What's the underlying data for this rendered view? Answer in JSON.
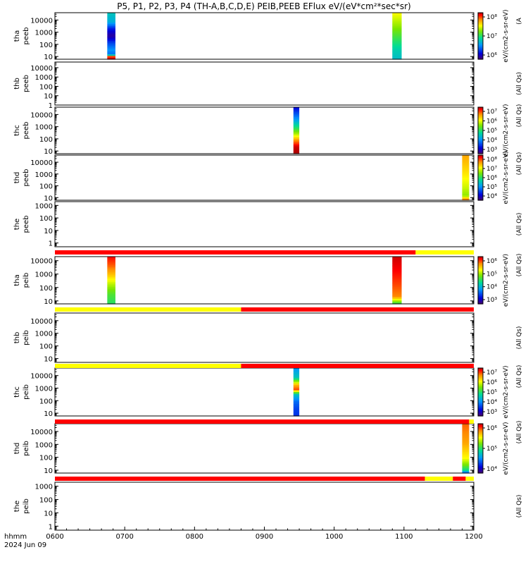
{
  "title": "P5, P1, P2, P3, P4 (TH-A,B,C,D,E) PEIB,PEEB EFlux eV/(eV*cm²*sec*sr)",
  "footer": {
    "xunit": "hhmm",
    "date": "2024 Jun 09"
  },
  "chart_data": {
    "type": "heatmap",
    "x_axis": {
      "range": [
        "0600",
        "1200"
      ],
      "ticks": [
        "0600",
        "0700",
        "0800",
        "0900",
        "1000",
        "1100",
        "1200"
      ]
    },
    "panels": [
      {
        "id": "tha-peeb",
        "label_top": "tha",
        "label_bottom": "peeb",
        "yscale": "log",
        "ylim": [
          6,
          40000
        ],
        "yticks": [
          "10000",
          "1000",
          "100",
          "10"
        ],
        "colorbar": {
          "ticks": [
            "10⁸",
            "10⁷",
            "10⁶"
          ],
          "label": "eV/(cm2-s-sr-eV)",
          "side_label": "(A"
        },
        "spectra": [
          {
            "x_start": "0645",
            "x_end": "0652",
            "profile": "tha_e_1"
          },
          {
            "x_start": "1050",
            "x_end": "1058",
            "profile": "tha_e_2"
          }
        ]
      },
      {
        "id": "thb-peeb",
        "label_top": "thb",
        "label_bottom": "peeb",
        "yscale": "log",
        "ylim": [
          1,
          40000
        ],
        "yticks": [
          "10000",
          "1000",
          "100",
          "10",
          "1"
        ],
        "side_label": "(All Qs)",
        "spectra": []
      },
      {
        "id": "thc-peeb",
        "label_top": "thc",
        "label_bottom": "peeb",
        "yscale": "log",
        "ylim": [
          6,
          40000
        ],
        "yticks": [
          "10000",
          "1000",
          "100",
          "10"
        ],
        "colorbar": {
          "ticks": [
            "10⁷",
            "10⁶",
            "10⁵",
            "10⁴",
            "10³"
          ],
          "label": "eV/(cm2-s-sr-eV)",
          "side_label": "(All Qs)"
        },
        "spectra": [
          {
            "x_start": "0925",
            "x_end": "0930",
            "profile": "thc_e"
          }
        ]
      },
      {
        "id": "thd-peeb",
        "label_top": "thd",
        "label_bottom": "peeb",
        "yscale": "log",
        "ylim": [
          6,
          40000
        ],
        "yticks": [
          "10000",
          "1000",
          "100",
          "10"
        ],
        "colorbar": {
          "ticks": [
            "10⁸",
            "10⁷",
            "10⁶",
            "10⁵",
            "10⁴"
          ],
          "label": "eV/(cm2-s-sr-eV)",
          "side_label": "(All Qs)"
        },
        "spectra": [
          {
            "x_start": "1150",
            "x_end": "1156",
            "profile": "thd_e"
          }
        ]
      },
      {
        "id": "the-peeb",
        "label_top": "the",
        "label_bottom": "peeb",
        "yscale": "log",
        "ylim": [
          0.5,
          2000
        ],
        "yticks": [
          "1000",
          "100",
          "10",
          "1"
        ],
        "side_label": "(All Qs)",
        "spectra": []
      },
      {
        "id": "tha-peib",
        "label_top": "tha",
        "label_bottom": "peib",
        "yscale": "log",
        "ylim": [
          6,
          20000
        ],
        "yticks": [
          "10000",
          "1000",
          "100",
          "10"
        ],
        "colorbar": {
          "ticks": [
            "10⁶",
            "10⁵",
            "10⁴",
            "10³"
          ],
          "label": "eV/(cm2-s-sr-eV)",
          "side_label": "(All Qs)"
        },
        "spectra": [
          {
            "x_start": "0645",
            "x_end": "0652",
            "profile": "tha_i_1"
          },
          {
            "x_start": "1050",
            "x_end": "1058",
            "profile": "tha_i_2"
          }
        ]
      },
      {
        "id": "thb-peib",
        "label_top": "thb",
        "label_bottom": "peib",
        "yscale": "log",
        "ylim": [
          5,
          40000
        ],
        "yticks": [
          "10000",
          "1000",
          "100",
          "10"
        ],
        "side_label": "(All Qs)",
        "spectra": []
      },
      {
        "id": "thc-peib",
        "label_top": "thc",
        "label_bottom": "peib",
        "yscale": "log",
        "ylim": [
          6,
          40000
        ],
        "yticks": [
          "10000",
          "1000",
          "100",
          "10"
        ],
        "colorbar": {
          "ticks": [
            "10⁷",
            "10⁶",
            "10⁵",
            "10⁴",
            "10³"
          ],
          "label": "eV/(cm2-s-sr-eV)",
          "side_label": "(All Qs)"
        },
        "spectra": [
          {
            "x_start": "0925",
            "x_end": "0930",
            "profile": "thc_i"
          }
        ]
      },
      {
        "id": "thd-peib",
        "label_top": "thd",
        "label_bottom": "peib",
        "yscale": "log",
        "ylim": [
          6,
          40000
        ],
        "yticks": [
          "10000",
          "1000",
          "100",
          "10"
        ],
        "colorbar": {
          "ticks": [
            "10⁶",
            "10⁵",
            "10⁴"
          ],
          "label": "eV/(cm2-s-sr-eV)",
          "side_label": "(All Qs)"
        },
        "spectra": [
          {
            "x_start": "1150",
            "x_end": "1156",
            "profile": "thd_i"
          }
        ]
      },
      {
        "id": "the-peib",
        "label_top": "the",
        "label_bottom": "peib",
        "yscale": "log",
        "ylim": [
          0.5,
          2000
        ],
        "yticks": [
          "1000",
          "100",
          "10",
          "1"
        ],
        "side_label": "(All Qs)",
        "spectra": []
      }
    ],
    "status_bars": [
      {
        "after_panel": "the-peeb",
        "segments": [
          {
            "x_start": "0600",
            "x_end": "1110",
            "color": "#ff0000"
          },
          {
            "x_start": "1110",
            "x_end": "1200",
            "color": "#ffff00"
          }
        ]
      },
      {
        "after_panel": "tha-peib",
        "segments": [
          {
            "x_start": "0600",
            "x_end": "0840",
            "color": "#ffff00"
          },
          {
            "x_start": "0840",
            "x_end": "1200",
            "color": "#ff0000"
          }
        ]
      },
      {
        "after_panel": "thb-peib",
        "segments": [
          {
            "x_start": "0600",
            "x_end": "0840",
            "color": "#ffff00"
          },
          {
            "x_start": "0840",
            "x_end": "1200",
            "color": "#ff0000"
          }
        ]
      },
      {
        "after_panel": "thc-peib",
        "segments": [
          {
            "x_start": "0600",
            "x_end": "1156",
            "color": "#ff0000"
          },
          {
            "x_start": "1156",
            "x_end": "1200",
            "color": "#ffff00"
          }
        ]
      },
      {
        "after_panel": "thd-peib",
        "segments": [
          {
            "x_start": "0600",
            "x_end": "1118",
            "color": "#ff0000"
          },
          {
            "x_start": "1118",
            "x_end": "1142",
            "color": "#ffff00"
          },
          {
            "x_start": "1142",
            "x_end": "1153",
            "color": "#ff0000"
          },
          {
            "x_start": "1153",
            "x_end": "1200",
            "color": "#ffff00"
          }
        ]
      }
    ]
  }
}
